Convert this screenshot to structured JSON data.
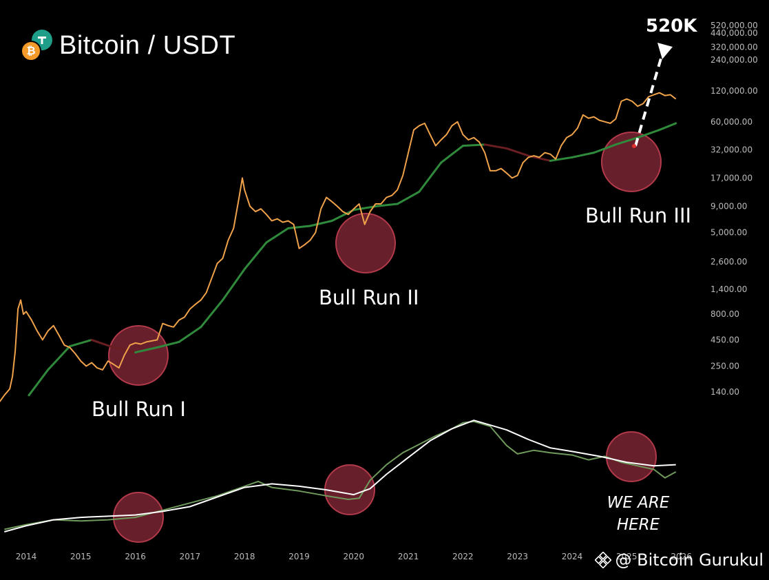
{
  "header": {
    "title": "Bitcoin / USDT"
  },
  "watermark": {
    "text": "@ Bitcoin Gurukul"
  },
  "colors": {
    "price": "#f0a24a",
    "ma_green": "#2f8a3c",
    "ma_red": "#6a1e22",
    "oscillator": "#6f9a5c",
    "oscillator_signal": "#ffffff",
    "highlight": "#8a2a3a"
  },
  "chart_data": [
    {
      "type": "line",
      "title": "Bitcoin / USDT",
      "scale": "log",
      "x_ticks": [
        "2014",
        "2015",
        "2016",
        "2017",
        "2018",
        "2019",
        "2020",
        "2021",
        "2022",
        "2023",
        "2024",
        "2025",
        "2026"
      ],
      "y_ticks": [
        "140.00",
        "250.00",
        "450.00",
        "800.00",
        "1,400.00",
        "2,600.00",
        "5,000.00",
        "9,000.00",
        "17,000.00",
        "32,000.00",
        "60,000.00",
        "120,000.00",
        "240,000.00",
        "320,000.00",
        "440,000.00",
        "520,000.00"
      ],
      "ylim": [
        140,
        520000
      ],
      "series": [
        {
          "x": [
            2013.4,
            2013.5,
            2013.6,
            2013.7,
            2013.75,
            2013.8,
            2013.85,
            2013.9,
            2013.95,
            2014.0,
            2014.1,
            2014.2,
            2014.3,
            2014.4,
            2014.5,
            2014.6,
            2014.7,
            2014.8,
            2014.9,
            2015.0,
            2015.1,
            2015.2,
            2015.3,
            2015.4,
            2015.5,
            2015.6,
            2015.7,
            2015.8,
            2015.9,
            2016.0,
            2016.1,
            2016.2,
            2016.3,
            2016.4,
            2016.5,
            2016.6,
            2016.7,
            2016.8,
            2016.9,
            2017.0,
            2017.1,
            2017.2,
            2017.3,
            2017.4,
            2017.5,
            2017.6,
            2017.7,
            2017.8,
            2017.9,
            2017.96,
            2018.0,
            2018.1,
            2018.2,
            2018.3,
            2018.4,
            2018.5,
            2018.6,
            2018.7,
            2018.8,
            2018.9,
            2019.0,
            2019.1,
            2019.2,
            2019.3,
            2019.4,
            2019.5,
            2019.6,
            2019.7,
            2019.8,
            2019.9,
            2020.0,
            2020.1,
            2020.2,
            2020.3,
            2020.4,
            2020.5,
            2020.6,
            2020.7,
            2020.8,
            2020.9,
            2021.0,
            2021.1,
            2021.2,
            2021.3,
            2021.4,
            2021.5,
            2021.6,
            2021.7,
            2021.8,
            2021.9,
            2022.0,
            2022.1,
            2022.2,
            2022.3,
            2022.4,
            2022.5,
            2022.6,
            2022.7,
            2022.8,
            2022.9,
            2023.0,
            2023.1,
            2023.2,
            2023.3,
            2023.4,
            2023.5,
            2023.6,
            2023.7,
            2023.8,
            2023.9,
            2024.0,
            2024.1,
            2024.2,
            2024.3,
            2024.4,
            2024.5,
            2024.6,
            2024.7,
            2024.8,
            2024.9,
            2025.0,
            2025.1,
            2025.2,
            2025.3,
            2025.4,
            2025.5,
            2025.6,
            2025.7,
            2025.8,
            2025.9
          ],
          "values": [
            100,
            110,
            130,
            150,
            200,
            350,
            900,
            1100,
            800,
            850,
            700,
            550,
            450,
            550,
            620,
            500,
            400,
            380,
            330,
            280,
            250,
            270,
            240,
            230,
            280,
            260,
            240,
            320,
            400,
            420,
            410,
            430,
            440,
            450,
            650,
            620,
            600,
            700,
            750,
            900,
            1000,
            1100,
            1300,
            1800,
            2500,
            2800,
            4200,
            5500,
            11000,
            17000,
            13000,
            9000,
            8000,
            8500,
            7500,
            6500,
            6800,
            6300,
            6500,
            6000,
            3500,
            3800,
            4200,
            5000,
            8500,
            11000,
            10000,
            9000,
            8000,
            7500,
            8500,
            9500,
            6000,
            8000,
            9500,
            9500,
            11000,
            11500,
            13000,
            18000,
            30000,
            50000,
            55000,
            58000,
            45000,
            35000,
            40000,
            45000,
            55000,
            60000,
            45000,
            40000,
            42000,
            38000,
            30000,
            20000,
            20000,
            21000,
            19000,
            17000,
            18000,
            24000,
            27000,
            28000,
            27000,
            30000,
            29000,
            26000,
            35000,
            42000,
            45000,
            52000,
            70000,
            65000,
            67000,
            62000,
            60000,
            58000,
            64000,
            95000,
            100000,
            95000,
            85000,
            90000,
            105000,
            110000,
            115000,
            108000,
            110000,
            100000
          ]
        },
        {
          "name": "",
          "x": [
            2014.05,
            2014.4,
            2014.8,
            2015.2,
            2015.6,
            2016.0,
            2016.4,
            2016.8,
            2017.2,
            2017.6,
            2018.0,
            2018.4,
            2018.8,
            2019.2,
            2019.6,
            2020.0,
            2020.4,
            2020.8,
            2021.2,
            2021.6,
            2022.0,
            2022.4,
            2022.8,
            2023.2,
            2023.6,
            2024.0,
            2024.4,
            2024.8,
            2025.2,
            2025.6,
            2025.9
          ],
          "values": [
            130,
            230,
            390,
            450,
            380,
            340,
            380,
            430,
            600,
            1100,
            2200,
            4000,
            5500,
            5800,
            6500,
            8300,
            9000,
            9500,
            12500,
            24000,
            35000,
            36000,
            33000,
            28000,
            25000,
            27000,
            30000,
            36000,
            42000,
            50000,
            58000
          ]
        }
      ]
    },
    {
      "type": "line",
      "title": "",
      "x_ticks": [
        "2014",
        "2015",
        "2016",
        "2017",
        "2018",
        "2019",
        "2020",
        "2021",
        "2022",
        "2023",
        "2024",
        "2025",
        "2026"
      ],
      "ylim": [
        0,
        100
      ],
      "series": [
        {
          "x": [
            2013.6,
            2014.0,
            2014.5,
            2015.0,
            2015.5,
            2016.0,
            2016.5,
            2017.0,
            2017.5,
            2018.0,
            2018.25,
            2018.5,
            2019.0,
            2019.5,
            2019.9,
            2020.1,
            2020.3,
            2020.6,
            2020.9,
            2021.2,
            2021.5,
            2021.8,
            2022.0,
            2022.2,
            2022.5,
            2022.8,
            2023.0,
            2023.3,
            2023.6,
            2024.0,
            2024.3,
            2024.6,
            2024.9,
            2025.2,
            2025.5,
            2025.7,
            2025.9
          ],
          "values": [
            2,
            6,
            10,
            9,
            10,
            12,
            18,
            24,
            30,
            38,
            42,
            37,
            34,
            30,
            27,
            28,
            43,
            56,
            66,
            73,
            80,
            86,
            91,
            92,
            88,
            72,
            65,
            68,
            66,
            64,
            60,
            63,
            58,
            55,
            52,
            45,
            50
          ]
        },
        {
          "x": [
            2013.6,
            2014.0,
            2014.5,
            2015.0,
            2015.5,
            2016.0,
            2016.5,
            2017.0,
            2017.5,
            2018.0,
            2018.5,
            2019.0,
            2019.5,
            2020.0,
            2020.3,
            2020.6,
            2021.0,
            2021.4,
            2021.8,
            2022.2,
            2022.5,
            2022.8,
            2023.2,
            2023.6,
            2024.0,
            2024.5,
            2025.0,
            2025.5,
            2025.9
          ],
          "values": [
            0,
            5,
            10,
            12,
            13,
            14,
            17,
            21,
            29,
            37,
            40,
            38,
            35,
            31,
            36,
            48,
            62,
            76,
            86,
            93,
            89,
            85,
            77,
            70,
            67,
            63,
            58,
            55,
            56
          ]
        }
      ]
    }
  ],
  "annotations": {
    "bull_run_1": "Bull Run I",
    "bull_run_2": "Bull Run II",
    "bull_run_3": "Bull Run III",
    "target": "520K",
    "we_are_here_1": "WE ARE",
    "we_are_here_2": "HERE"
  }
}
